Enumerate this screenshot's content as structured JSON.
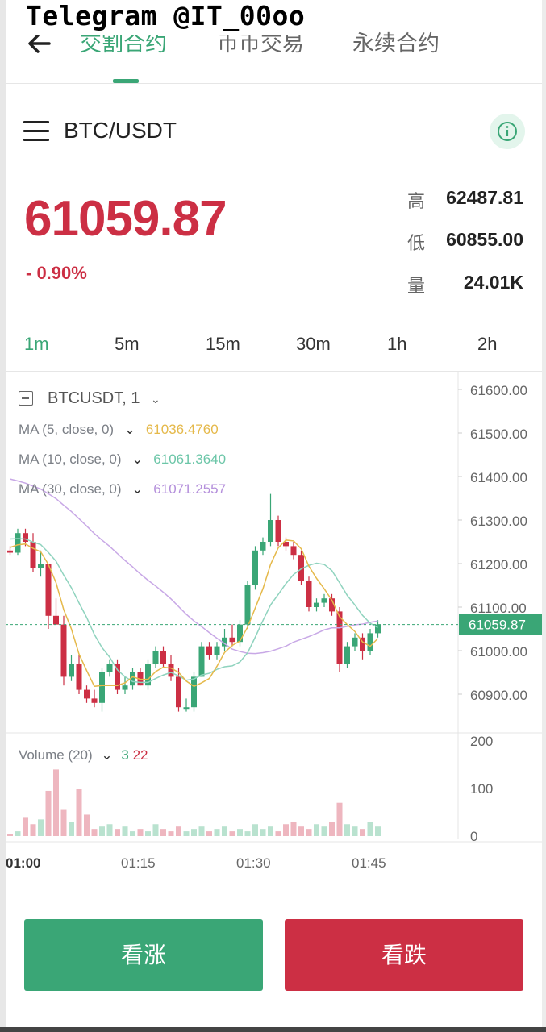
{
  "watermark": "Telegram @IT_00oo",
  "nav": {
    "tabs": [
      "交割合约",
      "币币交易",
      "永续合约"
    ],
    "active_tab": 0
  },
  "pair": {
    "name": "BTC/USDT"
  },
  "ticker": {
    "price": "61059.87",
    "change": "- 0.90%",
    "high_label": "高",
    "high": "62487.81",
    "low_label": "低",
    "low": "60855.00",
    "volume_label": "量",
    "volume": "24.01K"
  },
  "intervals": [
    "1m",
    "5m",
    "15m",
    "30m",
    "1h",
    "2h"
  ],
  "active_interval": "1m",
  "chart": {
    "symbol": "BTCUSDT, 1",
    "ma5_label": "MA (5, close, 0)",
    "ma5_value": "61036.4760",
    "ma10_label": "MA (10, close, 0)",
    "ma10_value": "61061.3640",
    "ma30_label": "MA (30, close, 0)",
    "ma30_value": "61071.2557",
    "volume_label": "Volume (20)",
    "volume_up": "3",
    "volume_down": "22",
    "last_price_tag": "61059.87",
    "colors": {
      "up": "#3aa676",
      "down": "#cc2f44",
      "ma5": "#e5b94b",
      "ma10": "#8fd3be",
      "ma30": "#c8a8e6"
    }
  },
  "chart_data": {
    "type": "candlestick",
    "y_ticks": [
      "61600.00",
      "61500.00",
      "61400.00",
      "61300.00",
      "61200.00",
      "61100.00",
      "61000.00",
      "60900.00"
    ],
    "y_range": [
      60850,
      61650
    ],
    "volume_ticks": [
      "200",
      "100",
      "0"
    ],
    "volume_range": [
      0,
      220
    ],
    "x_ticks": [
      "01:00",
      "01:15",
      "01:30",
      "01:45"
    ],
    "candles": [
      {
        "o": 61230,
        "h": 61240,
        "l": 61220,
        "c": 61225
      },
      {
        "o": 61225,
        "h": 61280,
        "l": 61220,
        "c": 61270
      },
      {
        "o": 61270,
        "h": 61280,
        "l": 61240,
        "c": 61250
      },
      {
        "o": 61250,
        "h": 61270,
        "l": 61180,
        "c": 61190
      },
      {
        "o": 61190,
        "h": 61230,
        "l": 61170,
        "c": 61200
      },
      {
        "o": 61200,
        "h": 61200,
        "l": 61050,
        "c": 61080
      },
      {
        "o": 61080,
        "h": 61120,
        "l": 61060,
        "c": 61060
      },
      {
        "o": 61060,
        "h": 61080,
        "l": 60920,
        "c": 60940
      },
      {
        "o": 60940,
        "h": 60990,
        "l": 60930,
        "c": 60970
      },
      {
        "o": 60970,
        "h": 60990,
        "l": 60900,
        "c": 60910
      },
      {
        "o": 60910,
        "h": 60920,
        "l": 60880,
        "c": 60890
      },
      {
        "o": 60890,
        "h": 60910,
        "l": 60870,
        "c": 60880
      },
      {
        "o": 60880,
        "h": 60960,
        "l": 60860,
        "c": 60950
      },
      {
        "o": 60950,
        "h": 60980,
        "l": 60940,
        "c": 60970
      },
      {
        "o": 60970,
        "h": 60980,
        "l": 60900,
        "c": 60910
      },
      {
        "o": 60910,
        "h": 60940,
        "l": 60900,
        "c": 60920
      },
      {
        "o": 60920,
        "h": 60960,
        "l": 60910,
        "c": 60950
      },
      {
        "o": 60950,
        "h": 60960,
        "l": 60920,
        "c": 60920
      },
      {
        "o": 60920,
        "h": 60980,
        "l": 60910,
        "c": 60970
      },
      {
        "o": 60970,
        "h": 61010,
        "l": 60960,
        "c": 61000
      },
      {
        "o": 61000,
        "h": 61010,
        "l": 60960,
        "c": 60970
      },
      {
        "o": 60970,
        "h": 60990,
        "l": 60930,
        "c": 60940
      },
      {
        "o": 60940,
        "h": 60960,
        "l": 60860,
        "c": 60870
      },
      {
        "o": 60870,
        "h": 60890,
        "l": 60860,
        "c": 60870
      },
      {
        "o": 60870,
        "h": 60950,
        "l": 60860,
        "c": 60940
      },
      {
        "o": 60940,
        "h": 61020,
        "l": 60940,
        "c": 61010
      },
      {
        "o": 61010,
        "h": 61020,
        "l": 60980,
        "c": 60990
      },
      {
        "o": 60990,
        "h": 61020,
        "l": 60980,
        "c": 61010
      },
      {
        "o": 61010,
        "h": 61050,
        "l": 61000,
        "c": 61030
      },
      {
        "o": 61030,
        "h": 61060,
        "l": 61010,
        "c": 61020
      },
      {
        "o": 61020,
        "h": 61070,
        "l": 61010,
        "c": 61060
      },
      {
        "o": 61060,
        "h": 61160,
        "l": 61050,
        "c": 61150
      },
      {
        "o": 61150,
        "h": 61240,
        "l": 61140,
        "c": 61230
      },
      {
        "o": 61230,
        "h": 61260,
        "l": 61220,
        "c": 61250
      },
      {
        "o": 61250,
        "h": 61360,
        "l": 61240,
        "c": 61300
      },
      {
        "o": 61300,
        "h": 61310,
        "l": 61240,
        "c": 61250
      },
      {
        "o": 61250,
        "h": 61260,
        "l": 61230,
        "c": 61240
      },
      {
        "o": 61240,
        "h": 61250,
        "l": 61210,
        "c": 61220
      },
      {
        "o": 61220,
        "h": 61230,
        "l": 61150,
        "c": 61160
      },
      {
        "o": 61160,
        "h": 61170,
        "l": 61090,
        "c": 61100
      },
      {
        "o": 61100,
        "h": 61120,
        "l": 61090,
        "c": 61110
      },
      {
        "o": 61110,
        "h": 61130,
        "l": 61100,
        "c": 61120
      },
      {
        "o": 61120,
        "h": 61130,
        "l": 61080,
        "c": 61090
      },
      {
        "o": 61090,
        "h": 61100,
        "l": 60950,
        "c": 60970
      },
      {
        "o": 60970,
        "h": 61020,
        "l": 60960,
        "c": 61010
      },
      {
        "o": 61010,
        "h": 61040,
        "l": 61000,
        "c": 61030
      },
      {
        "o": 61030,
        "h": 61040,
        "l": 60980,
        "c": 61000
      },
      {
        "o": 61000,
        "h": 61050,
        "l": 60990,
        "c": 61040
      },
      {
        "o": 61040,
        "h": 61070,
        "l": 61030,
        "c": 61060
      }
    ],
    "volumes": [
      5,
      10,
      40,
      25,
      35,
      95,
      140,
      55,
      30,
      100,
      45,
      15,
      20,
      25,
      15,
      20,
      10,
      15,
      10,
      25,
      15,
      10,
      20,
      10,
      15,
      20,
      10,
      15,
      20,
      10,
      15,
      10,
      25,
      15,
      20,
      10,
      25,
      30,
      20,
      15,
      25,
      20,
      30,
      70,
      25,
      20,
      15,
      30,
      20
    ]
  },
  "buttons": {
    "up": "看涨",
    "down": "看跌"
  }
}
